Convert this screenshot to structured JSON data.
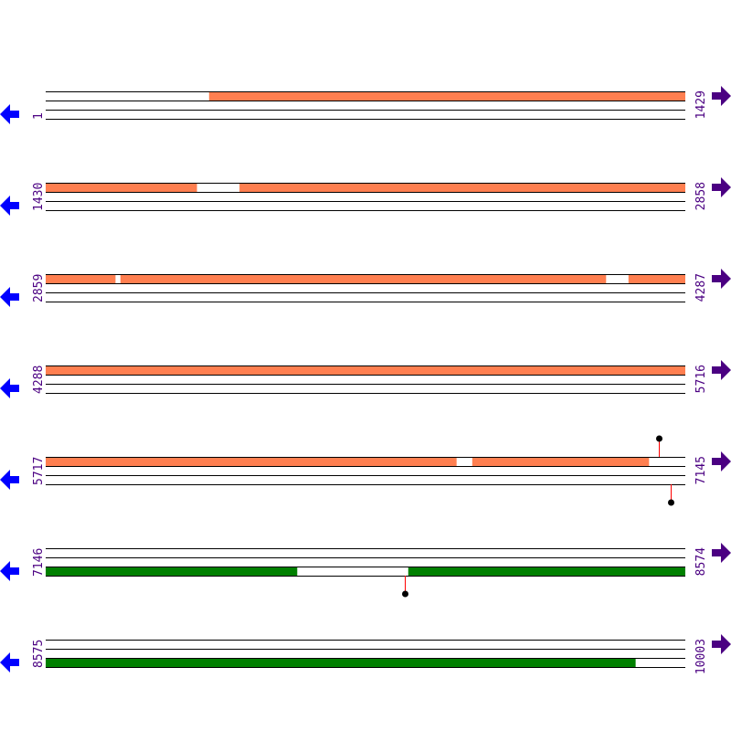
{
  "colors": {
    "feature_orange": "#ff7f50",
    "feature_green": "#008000",
    "track_line": "#000000",
    "lollipop_stem": "#ff0000",
    "lollipop_head": "#000000",
    "reverse_arrow": "#0000ff",
    "forward_arrow": "#4b0082",
    "label": "#4b0082"
  },
  "icons": {
    "left": "arrow-left-icon",
    "right": "arrow-right-icon"
  },
  "rows": [
    {
      "start": "1",
      "end": "1429",
      "s": 1,
      "e": 1429,
      "track": "top",
      "color": "feature_orange",
      "segments": [
        [
          366,
          1429
        ]
      ],
      "lollipops": []
    },
    {
      "start": "1430",
      "end": "2858",
      "s": 1430,
      "e": 2858,
      "track": "top",
      "color": "feature_orange",
      "segments": [
        [
          1430,
          1767
        ],
        [
          1863,
          2858
        ]
      ],
      "lollipops": []
    },
    {
      "start": "2859",
      "end": "4287",
      "s": 2859,
      "e": 4287,
      "track": "top",
      "color": "feature_orange",
      "segments": [
        [
          2859,
          3014
        ],
        [
          3026,
          4110
        ],
        [
          4161,
          4287
        ]
      ],
      "lollipops": []
    },
    {
      "start": "4288",
      "end": "5716",
      "s": 4288,
      "e": 5716,
      "track": "top",
      "color": "feature_orange",
      "segments": [
        [
          4288,
          5716
        ]
      ],
      "lollipops": []
    },
    {
      "start": "5717",
      "end": "7145",
      "s": 5717,
      "e": 7145,
      "track": "top",
      "color": "feature_orange",
      "segments": [
        [
          5717,
          6634
        ],
        [
          6670,
          7064
        ]
      ],
      "lollipops": [
        {
          "pos": 7087,
          "dir": "up"
        },
        {
          "pos": 7113,
          "dir": "down"
        }
      ]
    },
    {
      "start": "7146",
      "end": "8574",
      "s": 7146,
      "e": 8574,
      "track": "bottom",
      "color": "feature_green",
      "segments": [
        [
          7146,
          7707
        ],
        [
          7956,
          8574
        ]
      ],
      "lollipops": [
        {
          "pos": 7948,
          "dir": "down"
        }
      ]
    },
    {
      "start": "8575",
      "end": "10003",
      "s": 8575,
      "e": 10003,
      "track": "bottom",
      "color": "feature_green",
      "segments": [
        [
          8575,
          9892
        ]
      ],
      "lollipops": []
    }
  ]
}
